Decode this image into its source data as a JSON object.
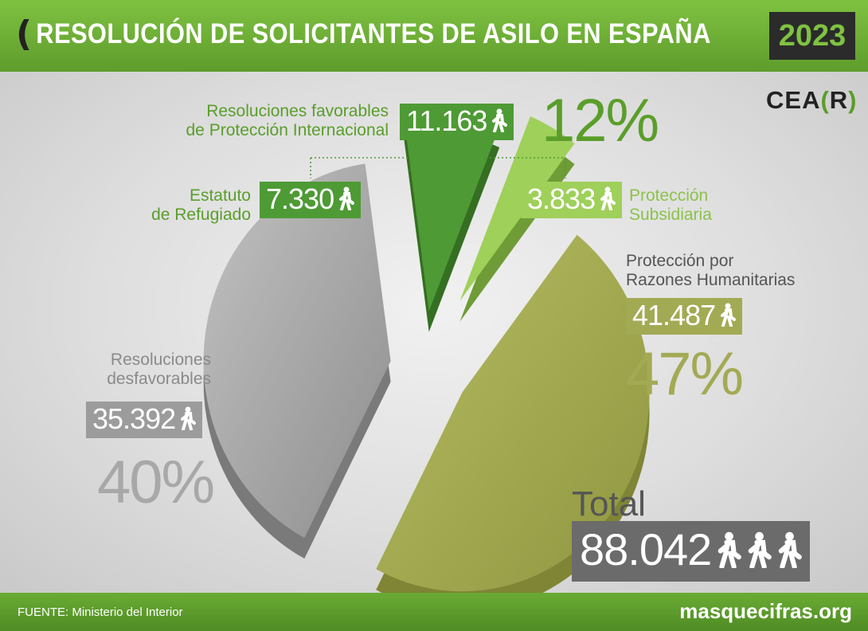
{
  "header": {
    "title": "RESOLUCIÓN DE SOLICITANTES DE ASILO EN ESPAÑA",
    "year": "2023"
  },
  "logo": {
    "text": "CEA",
    "bracket_open": "(",
    "letter": "R",
    "bracket_close": ")"
  },
  "favorable": {
    "label_line1": "Resoluciones favorables",
    "label_line2": "de Protección Internacional",
    "count": "11.163",
    "percent": "12%"
  },
  "refugiado": {
    "label_line1": "Estatuto",
    "label_line2": "de Refugiado",
    "count": "7.330"
  },
  "subsidiaria": {
    "label_line1": "Protección",
    "label_line2": "Subsidiaria",
    "count": "3.833"
  },
  "humanitarias": {
    "label_line1": "Protección por",
    "label_line2": "Razones Humanitarias",
    "count": "41.487",
    "percent": "47%"
  },
  "desfavorables": {
    "label_line1": "Resoluciones",
    "label_line2": "desfavorables",
    "count": "35.392",
    "percent": "40%"
  },
  "total": {
    "label": "Total",
    "count": "88.042"
  },
  "footer": {
    "source": "FUENTE: Ministerio del Interior",
    "site": "masquecifras.org"
  },
  "colors": {
    "green": "#5a9e2a",
    "light_green": "#9fd05a",
    "olive": "#a3aa54",
    "grey": "#9c9c9c",
    "dark_grey": "#6b6b6b"
  },
  "chart_data": {
    "type": "pie",
    "title": "RESOLUCIÓN DE SOLICITANTES DE ASILO EN ESPAÑA",
    "categories": [
      "Protección por Razones Humanitarias",
      "Resoluciones desfavorables",
      "Estatuto de Refugiado",
      "Protección Subsidiaria"
    ],
    "values": [
      41487,
      35392,
      7330,
      3833
    ],
    "total": 88042,
    "colors": [
      "#a3aa54",
      "#a8a8a8",
      "#4e9a35",
      "#9fd05a"
    ]
  }
}
